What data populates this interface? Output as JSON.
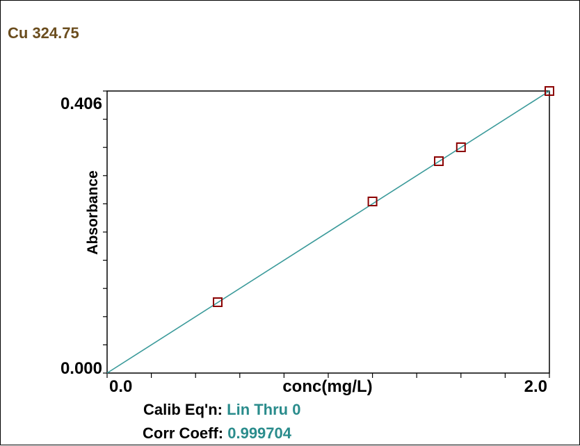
{
  "title": "Cu 324.75",
  "footer": {
    "calib_label": "Calib Eq'n:",
    "calib_value": "Lin Thru 0",
    "corr_label": "Corr Coeff:",
    "corr_value": "0.999704"
  },
  "colors": {
    "title": "#6b4d1e",
    "fit_line": "#3a9a9a",
    "marker": "#8b0000",
    "value_text": "#2a8c8c"
  },
  "chart_data": {
    "type": "scatter",
    "xlabel": "conc(mg/L)",
    "ylabel": "Absorbance",
    "xlim": [
      0.0,
      2.0
    ],
    "ylim": [
      0.0,
      0.406
    ],
    "x_tick_labels": [
      "0.0",
      "2.0"
    ],
    "y_tick_labels": [
      "0.000",
      "0.406"
    ],
    "points": [
      {
        "x": 0.5,
        "y": 0.102
      },
      {
        "x": 1.2,
        "y": 0.247
      },
      {
        "x": 1.5,
        "y": 0.305
      },
      {
        "x": 1.6,
        "y": 0.325
      },
      {
        "x": 2.0,
        "y": 0.406
      }
    ],
    "fit_line": {
      "x": [
        0.0,
        2.0
      ],
      "y": [
        0.0,
        0.406
      ]
    },
    "grid": false,
    "legend": "none"
  }
}
